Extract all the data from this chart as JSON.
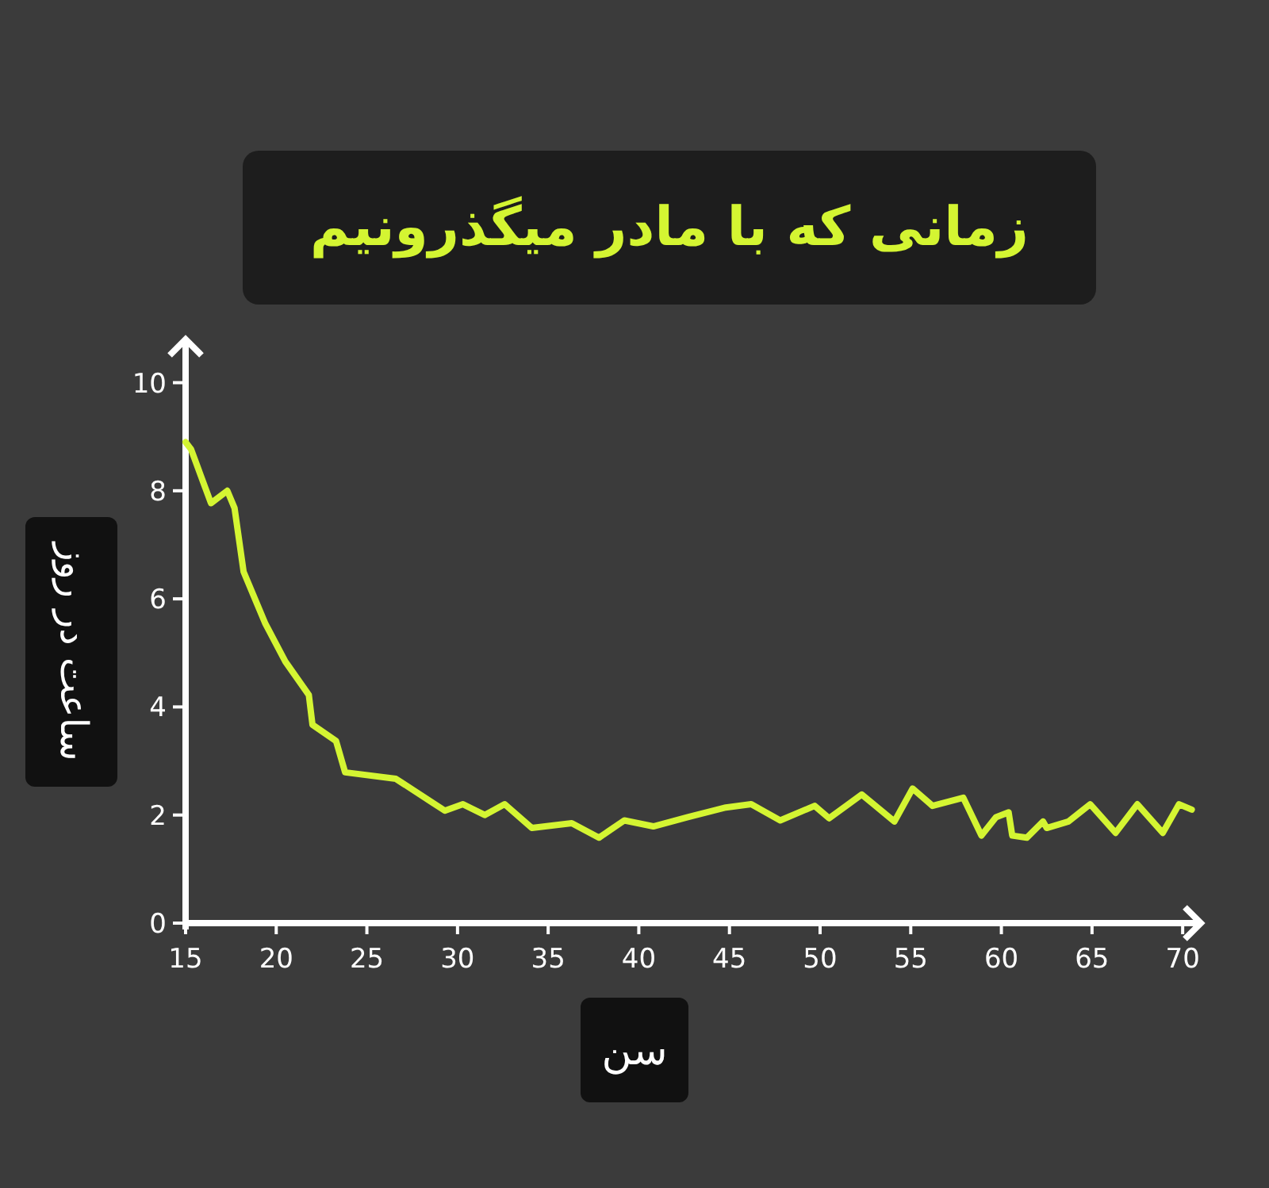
{
  "chart_data": {
    "type": "line",
    "title": "زمانی که با مادر میگذرونیم",
    "xlabel": "سن",
    "ylabel": "ساعت در روز",
    "x": [
      15,
      15.3,
      16.4,
      17.3,
      17.7,
      18.2,
      19.4,
      20.5,
      21.8,
      22.0,
      23.3,
      23.8,
      26.6,
      29.3,
      30.3,
      31.5,
      32.6,
      34.1,
      36.3,
      37.8,
      39.2,
      40.8,
      42.7,
      44.8,
      46.2,
      47.8,
      49.7,
      50.5,
      52.3,
      54.1,
      55.1,
      56.2,
      57.9,
      58.9,
      59.7,
      60.4,
      60.6,
      61.4,
      62.3,
      62.5,
      63.7,
      64.9,
      66.3,
      67.5,
      68.9,
      69.8,
      70.5
    ],
    "series": [
      {
        "color": "#d4f532",
        "values": [
          8.9,
          8.77,
          7.77,
          8.0,
          7.68,
          6.5,
          5.54,
          4.84,
          4.22,
          3.67,
          3.37,
          2.79,
          2.67,
          2.08,
          2.2,
          2.0,
          2.2,
          1.76,
          1.85,
          1.58,
          1.9,
          1.79,
          1.96,
          2.14,
          2.2,
          1.9,
          2.17,
          1.94,
          2.38,
          1.88,
          2.49,
          2.17,
          2.32,
          1.62,
          1.96,
          2.05,
          1.62,
          1.58,
          1.88,
          1.76,
          1.88,
          2.2,
          1.67,
          2.2,
          1.67,
          2.2,
          2.1
        ]
      }
    ],
    "xlim": [
      15,
      71
    ],
    "ylim": [
      0,
      10.8
    ],
    "xticks": [
      15,
      20,
      25,
      30,
      35,
      40,
      45,
      50,
      55,
      60,
      65,
      70
    ],
    "yticks": [
      0,
      2,
      4,
      6,
      8,
      10
    ]
  }
}
